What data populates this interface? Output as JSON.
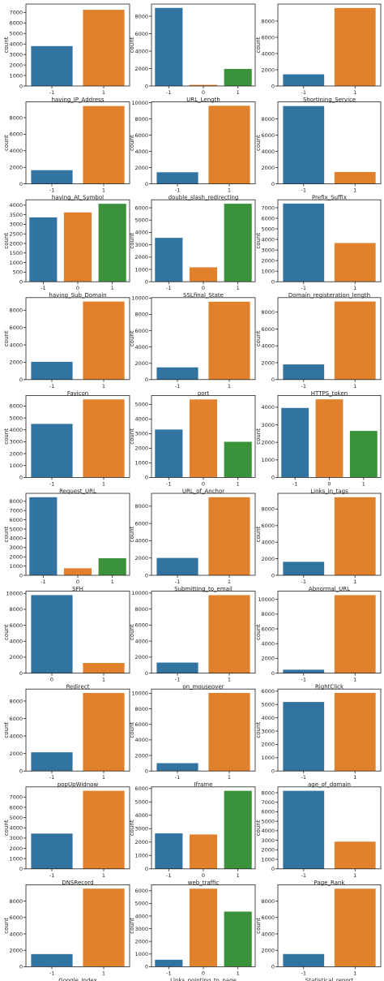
{
  "colors": {
    "-1": "#3274a1",
    "0": "#e1812c",
    "1": "#3a923a",
    "binary_1": "#e1812c"
  },
  "chart_data": [
    {
      "type": "bar",
      "xlabel": "having_IP_Address",
      "ylabel": "count",
      "categories": [
        "-1",
        "1"
      ],
      "values": [
        3800,
        7250
      ],
      "colors": [
        "#3274a1",
        "#e1812c"
      ],
      "ylim": [
        0,
        7800
      ],
      "yticks": [
        0,
        1000,
        2000,
        3000,
        4000,
        5000,
        6000,
        7000
      ]
    },
    {
      "type": "bar",
      "xlabel": "URL_Length",
      "ylabel": "count",
      "categories": [
        "-1",
        "0",
        "1"
      ],
      "values": [
        8960,
        135,
        1960
      ],
      "colors": [
        "#3274a1",
        "#e1812c",
        "#3a923a"
      ],
      "ylim": [
        0,
        9400
      ],
      "yticks": [
        0,
        2000,
        4000,
        6000,
        8000
      ]
    },
    {
      "type": "bar",
      "xlabel": "Shortining_Service",
      "ylabel": "count",
      "categories": [
        "-1",
        "1"
      ],
      "values": [
        1440,
        9610
      ],
      "colors": [
        "#3274a1",
        "#e1812c"
      ],
      "ylim": [
        0,
        10100
      ],
      "yticks": [
        0,
        2000,
        4000,
        6000,
        8000
      ]
    },
    {
      "type": "bar",
      "xlabel": "having_At_Symbol",
      "ylabel": "count",
      "categories": [
        "-1",
        "1"
      ],
      "values": [
        1655,
        9400
      ],
      "colors": [
        "#3274a1",
        "#e1812c"
      ],
      "ylim": [
        0,
        9900
      ],
      "yticks": [
        0,
        2000,
        4000,
        6000,
        8000
      ]
    },
    {
      "type": "bar",
      "xlabel": "double_slash_redirecting",
      "ylabel": "count",
      "categories": [
        "-1",
        "1"
      ],
      "values": [
        1430,
        9625
      ],
      "colors": [
        "#3274a1",
        "#e1812c"
      ],
      "ylim": [
        0,
        10100
      ],
      "yticks": [
        0,
        2000,
        4000,
        6000,
        8000,
        10000
      ]
    },
    {
      "type": "bar",
      "xlabel": "Prefix_Suffix",
      "ylabel": "count",
      "categories": [
        "-1",
        "1"
      ],
      "values": [
        9590,
        1465
      ],
      "colors": [
        "#3274a1",
        "#e1812c"
      ],
      "ylim": [
        0,
        10100
      ],
      "yticks": [
        0,
        2000,
        4000,
        6000,
        8000
      ]
    },
    {
      "type": "bar",
      "xlabel": "having_Sub_Domain",
      "ylabel": "count",
      "categories": [
        "-1",
        "0",
        "1"
      ],
      "values": [
        3360,
        3620,
        4070
      ],
      "colors": [
        "#3274a1",
        "#e1812c",
        "#3a923a"
      ],
      "ylim": [
        0,
        4280
      ],
      "yticks": [
        0,
        500,
        1000,
        1500,
        2000,
        2500,
        3000,
        3500,
        4000
      ]
    },
    {
      "type": "bar",
      "xlabel": "SSLfinal_State",
      "ylabel": "count",
      "categories": [
        "-1",
        "0",
        "1"
      ],
      "values": [
        3560,
        1170,
        6330
      ],
      "colors": [
        "#3274a1",
        "#e1812c",
        "#3a923a"
      ],
      "ylim": [
        0,
        6650
      ],
      "yticks": [
        0,
        1000,
        2000,
        3000,
        4000,
        5000,
        6000
      ]
    },
    {
      "type": "bar",
      "xlabel": "Domain_registeration_length",
      "ylabel": "count",
      "categories": [
        "-1",
        "1"
      ],
      "values": [
        7390,
        3660
      ],
      "colors": [
        "#3274a1",
        "#e1812c"
      ],
      "ylim": [
        0,
        7750
      ],
      "yticks": [
        0,
        1000,
        2000,
        3000,
        4000,
        5000,
        6000,
        7000
      ]
    },
    {
      "type": "bar",
      "xlabel": "Favicon",
      "ylabel": "count",
      "categories": [
        "-1",
        "1"
      ],
      "values": [
        2050,
        9000
      ],
      "colors": [
        "#3274a1",
        "#e1812c"
      ],
      "ylim": [
        0,
        9450
      ],
      "yticks": [
        0,
        2000,
        4000,
        6000,
        8000
      ]
    },
    {
      "type": "bar",
      "xlabel": "port",
      "ylabel": "count",
      "categories": [
        "-1",
        "1"
      ],
      "values": [
        1500,
        9550
      ],
      "colors": [
        "#3274a1",
        "#e1812c"
      ],
      "ylim": [
        0,
        10050
      ],
      "yticks": [
        0,
        2000,
        4000,
        6000,
        8000,
        10000
      ]
    },
    {
      "type": "bar",
      "xlabel": "HTTPS_token",
      "ylabel": "count",
      "categories": [
        "-1",
        "1"
      ],
      "values": [
        1800,
        9260
      ],
      "colors": [
        "#3274a1",
        "#e1812c"
      ],
      "ylim": [
        0,
        9720
      ],
      "yticks": [
        0,
        2000,
        4000,
        6000,
        8000
      ]
    },
    {
      "type": "bar",
      "xlabel": "Request_URL",
      "ylabel": "count",
      "categories": [
        "-1",
        "1"
      ],
      "values": [
        4500,
        6560
      ],
      "colors": [
        "#3274a1",
        "#e1812c"
      ],
      "ylim": [
        0,
        6890
      ],
      "yticks": [
        0,
        1000,
        2000,
        3000,
        4000,
        5000,
        6000
      ]
    },
    {
      "type": "bar",
      "xlabel": "URL_of_Anchor",
      "ylabel": "count",
      "categories": [
        "-1",
        "0",
        "1"
      ],
      "values": [
        3280,
        5340,
        2440
      ],
      "colors": [
        "#3274a1",
        "#e1812c",
        "#3a923a"
      ],
      "ylim": [
        0,
        5610
      ],
      "yticks": [
        0,
        1000,
        2000,
        3000,
        4000,
        5000
      ]
    },
    {
      "type": "bar",
      "xlabel": "Links_in_tags",
      "ylabel": "count",
      "categories": [
        "-1",
        "0",
        "1"
      ],
      "values": [
        3960,
        4450,
        2650
      ],
      "colors": [
        "#3274a1",
        "#e1812c",
        "#3a923a"
      ],
      "ylim": [
        0,
        4670
      ],
      "yticks": [
        0,
        1000,
        2000,
        3000,
        4000
      ]
    },
    {
      "type": "bar",
      "xlabel": "SFH",
      "ylabel": "count",
      "categories": [
        "-1",
        "0",
        "1"
      ],
      "values": [
        8440,
        760,
        1850
      ],
      "colors": [
        "#3274a1",
        "#e1812c",
        "#3a923a"
      ],
      "ylim": [
        0,
        8860
      ],
      "yticks": [
        0,
        1000,
        2000,
        3000,
        4000,
        5000,
        6000,
        7000,
        8000
      ]
    },
    {
      "type": "bar",
      "xlabel": "Submitting_to_email",
      "ylabel": "count",
      "categories": [
        "-1",
        "1"
      ],
      "values": [
        2010,
        9040
      ],
      "colors": [
        "#3274a1",
        "#e1812c"
      ],
      "ylim": [
        0,
        9490
      ],
      "yticks": [
        0,
        2000,
        4000,
        6000,
        8000
      ]
    },
    {
      "type": "bar",
      "xlabel": "Abnormal_URL",
      "ylabel": "count",
      "categories": [
        "-1",
        "1"
      ],
      "values": [
        1630,
        9430
      ],
      "colors": [
        "#3274a1",
        "#e1812c"
      ],
      "ylim": [
        0,
        9900
      ],
      "yticks": [
        0,
        2000,
        4000,
        6000,
        8000
      ]
    },
    {
      "type": "bar",
      "xlabel": "Redirect",
      "ylabel": "count",
      "categories": [
        "0",
        "1"
      ],
      "values": [
        9780,
        1280
      ],
      "colors": [
        "#3274a1",
        "#e1812c"
      ],
      "ylim": [
        0,
        10270
      ],
      "yticks": [
        0,
        2000,
        4000,
        6000,
        8000,
        10000
      ]
    },
    {
      "type": "bar",
      "xlabel": "on_mouseover",
      "ylabel": "count",
      "categories": [
        "-1",
        "1"
      ],
      "values": [
        1320,
        9740
      ],
      "colors": [
        "#3274a1",
        "#e1812c"
      ],
      "ylim": [
        0,
        10230
      ],
      "yticks": [
        0,
        2000,
        4000,
        6000,
        8000,
        10000
      ]
    },
    {
      "type": "bar",
      "xlabel": "RightClick",
      "ylabel": "count",
      "categories": [
        "-1",
        "1"
      ],
      "values": [
        470,
        10580
      ],
      "colors": [
        "#3274a1",
        "#e1812c"
      ],
      "ylim": [
        0,
        11110
      ],
      "yticks": [
        0,
        2000,
        4000,
        6000,
        8000,
        10000
      ]
    },
    {
      "type": "bar",
      "xlabel": "popUpWidnow",
      "ylabel": "count",
      "categories": [
        "-1",
        "1"
      ],
      "values": [
        2140,
        8920
      ],
      "colors": [
        "#3274a1",
        "#e1812c"
      ],
      "ylim": [
        0,
        9370
      ],
      "yticks": [
        0,
        2000,
        4000,
        6000,
        8000
      ]
    },
    {
      "type": "bar",
      "xlabel": "Iframe",
      "ylabel": "count",
      "categories": [
        "-1",
        "1"
      ],
      "values": [
        1010,
        10040
      ],
      "colors": [
        "#3274a1",
        "#e1812c"
      ],
      "ylim": [
        0,
        10540
      ],
      "yticks": [
        0,
        2000,
        4000,
        6000,
        8000,
        10000
      ]
    },
    {
      "type": "bar",
      "xlabel": "age_of_domain",
      "ylabel": "count",
      "categories": [
        "-1",
        "1"
      ],
      "values": [
        5190,
        5870
      ],
      "colors": [
        "#3274a1",
        "#e1812c"
      ],
      "ylim": [
        0,
        6160
      ],
      "yticks": [
        0,
        1000,
        2000,
        3000,
        4000,
        5000,
        6000
      ]
    },
    {
      "type": "bar",
      "xlabel": "DNSRecord",
      "ylabel": "count",
      "categories": [
        "-1",
        "1"
      ],
      "values": [
        3440,
        7610
      ],
      "colors": [
        "#3274a1",
        "#e1812c"
      ],
      "ylim": [
        0,
        7990
      ],
      "yticks": [
        0,
        1000,
        2000,
        3000,
        4000,
        5000,
        6000,
        7000
      ]
    },
    {
      "type": "bar",
      "xlabel": "web_traffic",
      "ylabel": "count",
      "categories": [
        "-1",
        "0",
        "1"
      ],
      "values": [
        2650,
        2570,
        5830
      ],
      "colors": [
        "#3274a1",
        "#e1812c",
        "#3a923a"
      ],
      "ylim": [
        0,
        6120
      ],
      "yticks": [
        0,
        1000,
        2000,
        3000,
        4000,
        5000,
        6000
      ]
    },
    {
      "type": "bar",
      "xlabel": "Page_Rank",
      "ylabel": "count",
      "categories": [
        "-1",
        "1"
      ],
      "values": [
        8200,
        2860
      ],
      "colors": [
        "#3274a1",
        "#e1812c"
      ],
      "ylim": [
        0,
        8610
      ],
      "yticks": [
        0,
        1000,
        2000,
        3000,
        4000,
        5000,
        6000,
        7000,
        8000
      ]
    },
    {
      "type": "bar",
      "xlabel": "Google_Index",
      "ylabel": "count",
      "categories": [
        "-1",
        "1"
      ],
      "values": [
        1540,
        9520
      ],
      "colors": [
        "#3274a1",
        "#e1812c"
      ],
      "ylim": [
        0,
        9990
      ],
      "yticks": [
        0,
        2000,
        4000,
        6000,
        8000
      ]
    },
    {
      "type": "bar",
      "xlabel": "Links_pointing_to_page",
      "ylabel": "count",
      "categories": [
        "-1",
        "0",
        "1"
      ],
      "values": [
        550,
        6160,
        4350
      ],
      "colors": [
        "#3274a1",
        "#e1812c",
        "#3a923a"
      ],
      "ylim": [
        0,
        6470
      ],
      "yticks": [
        0,
        1000,
        2000,
        3000,
        4000,
        5000,
        6000
      ]
    },
    {
      "type": "bar",
      "xlabel": "Statistical_report",
      "ylabel": "count",
      "categories": [
        "-1",
        "1"
      ],
      "values": [
        1550,
        9510
      ],
      "colors": [
        "#3274a1",
        "#e1812c"
      ],
      "ylim": [
        0,
        9990
      ],
      "yticks": [
        0,
        2000,
        4000,
        6000,
        8000
      ]
    }
  ]
}
